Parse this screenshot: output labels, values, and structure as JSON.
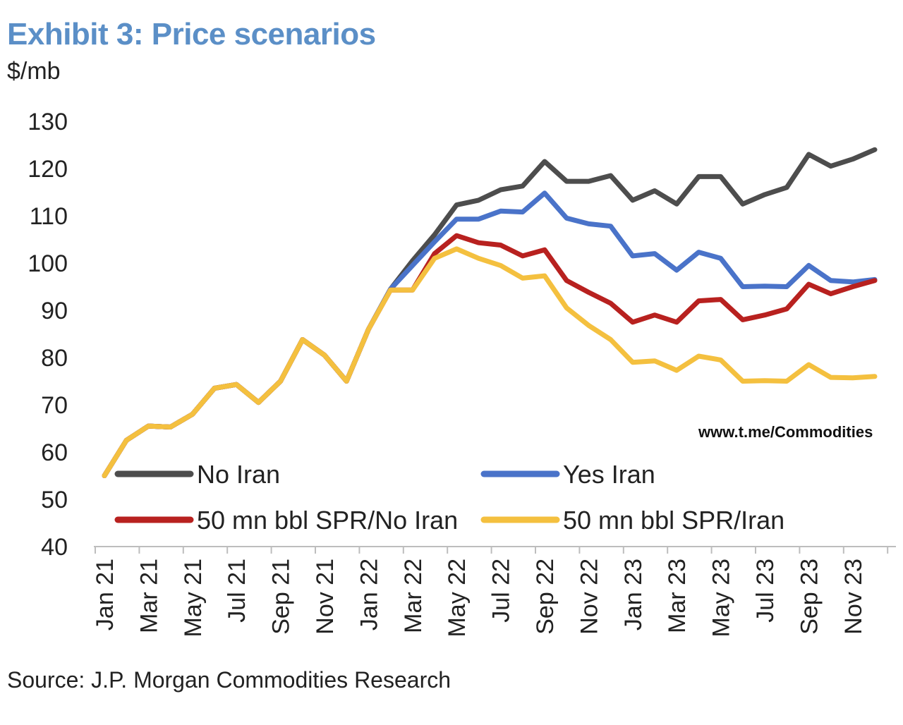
{
  "header": {
    "title": "Exhibit 3: Price scenarios",
    "unit": "$/mb"
  },
  "footer": {
    "source": "Source: J.P. Morgan Commodities Research"
  },
  "watermark": "www.t.me/Commodities",
  "chart_data": {
    "type": "line",
    "title": "Exhibit 3: Price scenarios",
    "ylabel": "$/mb",
    "xlabel": "",
    "ylim": [
      40,
      130
    ],
    "y_ticks": [
      40,
      50,
      60,
      70,
      80,
      90,
      100,
      110,
      120,
      130
    ],
    "grid": false,
    "legend_position": "bottom",
    "x": [
      "Jan 21",
      "Feb 21",
      "Mar 21",
      "Apr 21",
      "May 21",
      "Jun 21",
      "Jul 21",
      "Aug 21",
      "Sep 21",
      "Oct 21",
      "Nov 21",
      "Dec 21",
      "Jan 22",
      "Feb 22",
      "Mar 22",
      "Apr 22",
      "May 22",
      "Jun 22",
      "Jul 22",
      "Aug 22",
      "Sep 22",
      "Oct 22",
      "Nov 22",
      "Dec 22",
      "Jan 23",
      "Feb 23",
      "Mar 23",
      "Apr 23",
      "May 23",
      "Jun 23",
      "Jul 23",
      "Aug 23",
      "Sep 23",
      "Oct 23",
      "Nov 23",
      "Dec 23"
    ],
    "x_tick_labels": [
      "Jan 21",
      "Mar 21",
      "May 21",
      "Jul 21",
      "Sep 21",
      "Nov 21",
      "Jan 22",
      "Mar 22",
      "May 22",
      "Jul 22",
      "Sep 22",
      "Nov 22",
      "Jan 23",
      "Mar 23",
      "May 23",
      "Jul 23",
      "Sep 23",
      "Nov 23"
    ],
    "series": [
      {
        "name": "No Iran",
        "color": "#4d4d4d",
        "values": [
          55,
          62.5,
          65.5,
          65.3,
          68,
          73.5,
          74.3,
          70.5,
          75,
          83.8,
          80.5,
          75,
          86,
          94.5,
          100.5,
          106,
          112.3,
          113.3,
          115.5,
          116.3,
          121.5,
          117.3,
          117.3,
          118.5,
          113.3,
          115.3,
          112.5,
          118.3,
          118.3,
          112.5,
          114.5,
          116,
          123,
          120.5,
          122,
          124
        ]
      },
      {
        "name": "Yes Iran",
        "color": "#4a73c9",
        "values": [
          55,
          62.5,
          65.5,
          65.3,
          68,
          73.5,
          74.3,
          70.5,
          75,
          83.8,
          80.5,
          75,
          86,
          94.5,
          99.5,
          104.5,
          109.3,
          109.3,
          111,
          110.8,
          114.8,
          109.5,
          108.3,
          107.8,
          101.5,
          102,
          98.5,
          102.3,
          101,
          95,
          95.1,
          95,
          99.5,
          96.3,
          96,
          96.5
        ]
      },
      {
        "name": "50 mn bbl SPR/No Iran",
        "color": "#b8211f",
        "values": [
          55,
          62.5,
          65.5,
          65.3,
          68,
          73.5,
          74.3,
          70.5,
          75,
          83.8,
          80.5,
          75,
          86,
          94.3,
          94.3,
          102,
          105.8,
          104.3,
          103.8,
          101.5,
          102.8,
          96.3,
          93.8,
          91.5,
          87.5,
          89,
          87.5,
          92,
          92.3,
          88,
          89,
          90.3,
          95.5,
          93.5,
          95,
          96.3
        ]
      },
      {
        "name": "50 mn bbl SPR/Iran",
        "color": "#f4c03f",
        "values": [
          55,
          62.5,
          65.5,
          65.3,
          68,
          73.5,
          74.3,
          70.5,
          75,
          83.8,
          80.5,
          75,
          86,
          94.3,
          94.3,
          101,
          103,
          101,
          99.5,
          96.8,
          97.3,
          90.5,
          86.8,
          83.8,
          79,
          79.3,
          77.3,
          80.3,
          79.5,
          75,
          75.1,
          75,
          78.5,
          75.8,
          75.7,
          76
        ]
      }
    ]
  }
}
